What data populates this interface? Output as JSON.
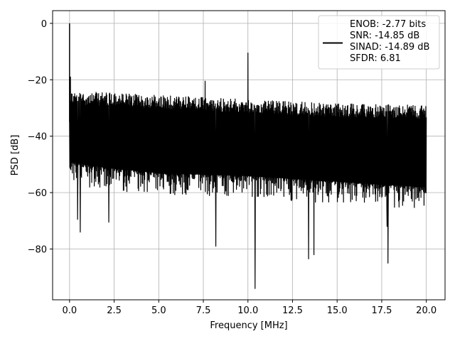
{
  "chart_data": {
    "type": "line",
    "title": "",
    "xlabel": "Frequency [MHz]",
    "ylabel": "PSD [dB]",
    "xlim": [
      -0.95,
      21.05
    ],
    "ylim": [
      -98,
      4.5
    ],
    "xticks": [
      0.0,
      2.5,
      5.0,
      7.5,
      10.0,
      12.5,
      15.0,
      17.5,
      20.0
    ],
    "xtick_labels": [
      "0.0",
      "2.5",
      "5.0",
      "7.5",
      "10.0",
      "12.5",
      "15.0",
      "17.5",
      "20.0"
    ],
    "yticks": [
      0,
      -20,
      -40,
      -60,
      -80
    ],
    "ytick_labels": [
      "0",
      "−20",
      "−40",
      "−60",
      "−80"
    ],
    "grid": true,
    "legend_position": "top-right",
    "series": [
      {
        "color": "#000000",
        "x_range": [
          0,
          20
        ],
        "noise_floor_top": [
          [
            0,
            -24
          ],
          [
            2,
            -24.5
          ],
          [
            5,
            -25.5
          ],
          [
            10,
            -27
          ],
          [
            15,
            -28.5
          ],
          [
            20,
            -29
          ]
        ],
        "noise_floor_bottom": [
          [
            0,
            -55
          ],
          [
            2,
            -57
          ],
          [
            5,
            -59
          ],
          [
            10,
            -60
          ],
          [
            15,
            -62
          ],
          [
            20,
            -64
          ]
        ],
        "spikes": [
          {
            "x": 0.0,
            "y": 0
          },
          {
            "x": 0.05,
            "y": -19
          },
          {
            "x": 10.0,
            "y": -10.5
          },
          {
            "x": 7.6,
            "y": -20.5
          },
          {
            "x": 0.45,
            "y": -69.5
          },
          {
            "x": 0.6,
            "y": -74
          },
          {
            "x": 2.2,
            "y": -70.5
          },
          {
            "x": 8.2,
            "y": -79
          },
          {
            "x": 10.4,
            "y": -94
          },
          {
            "x": 13.4,
            "y": -83.5
          },
          {
            "x": 13.7,
            "y": -82
          },
          {
            "x": 17.85,
            "y": -85
          },
          {
            "x": 17.8,
            "y": -72
          }
        ]
      }
    ],
    "legend": {
      "lines": [
        "ENOB: -2.77 bits",
        "SNR: -14.85 dB",
        "SINAD: -14.89 dB",
        "SFDR: 6.81"
      ]
    }
  }
}
